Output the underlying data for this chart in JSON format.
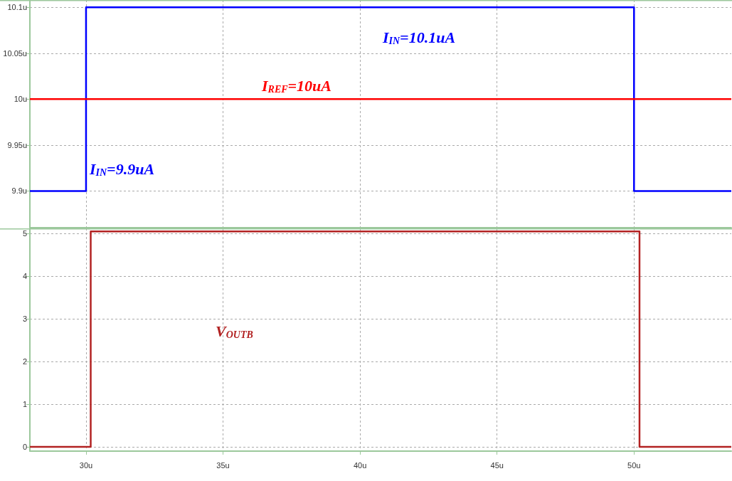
{
  "chart_data": [
    {
      "type": "line",
      "xlim": [
        27.95,
        53.55
      ],
      "ylim": [
        9.86,
        10.108
      ],
      "xticks": [
        {
          "value": 30,
          "label": null
        },
        {
          "value": 35,
          "label": null
        },
        {
          "value": 40,
          "label": null
        },
        {
          "value": 45,
          "label": null
        },
        {
          "value": 50,
          "label": null
        }
      ],
      "yticks": [
        {
          "value": 9.9,
          "label": "9.9u"
        },
        {
          "value": 9.95,
          "label": "9.95u"
        },
        {
          "value": 10,
          "label": "10u"
        },
        {
          "value": 10.05,
          "label": "10.05u"
        },
        {
          "value": 10.1,
          "label": "10.1u"
        }
      ],
      "tick_labels": "y",
      "grid": true,
      "marker": "none",
      "line_style": "solid",
      "series": [
        {
          "color": "#0000ff",
          "x": [
            27.95,
            30,
            30,
            50,
            50,
            53.55
          ],
          "values": [
            9.9,
            9.9,
            10.1,
            10.1,
            9.9,
            9.9
          ]
        },
        {
          "color": "#ff0000",
          "x": [
            27.95,
            53.55
          ],
          "values": [
            10,
            10
          ]
        }
      ],
      "annotations": [
        "I$_{IN}$=10.1uA",
        "I$_{REF}$=10uA",
        "I$_{IN}$=9.9uA"
      ]
    },
    {
      "type": "line",
      "xlim": [
        27.95,
        53.55
      ],
      "ylim": [
        -0.1,
        5.12
      ],
      "xticks": [
        {
          "value": 30,
          "label": "30u"
        },
        {
          "value": 35,
          "label": "35u"
        },
        {
          "value": 40,
          "label": "40u"
        },
        {
          "value": 45,
          "label": "45u"
        },
        {
          "value": 50,
          "label": "50u"
        }
      ],
      "yticks": [
        0,
        1,
        2,
        3,
        4,
        5
      ],
      "grid": true,
      "marker": "none",
      "line_style": "solid",
      "series": [
        {
          "color": "#b22222",
          "x": [
            27.95,
            30.17,
            30.17,
            50.2,
            50.2,
            53.55
          ],
          "values": [
            0,
            0,
            5.05,
            5.05,
            0,
            0
          ]
        }
      ],
      "annotations": [
        "V$_{OUTB}$"
      ]
    }
  ]
}
